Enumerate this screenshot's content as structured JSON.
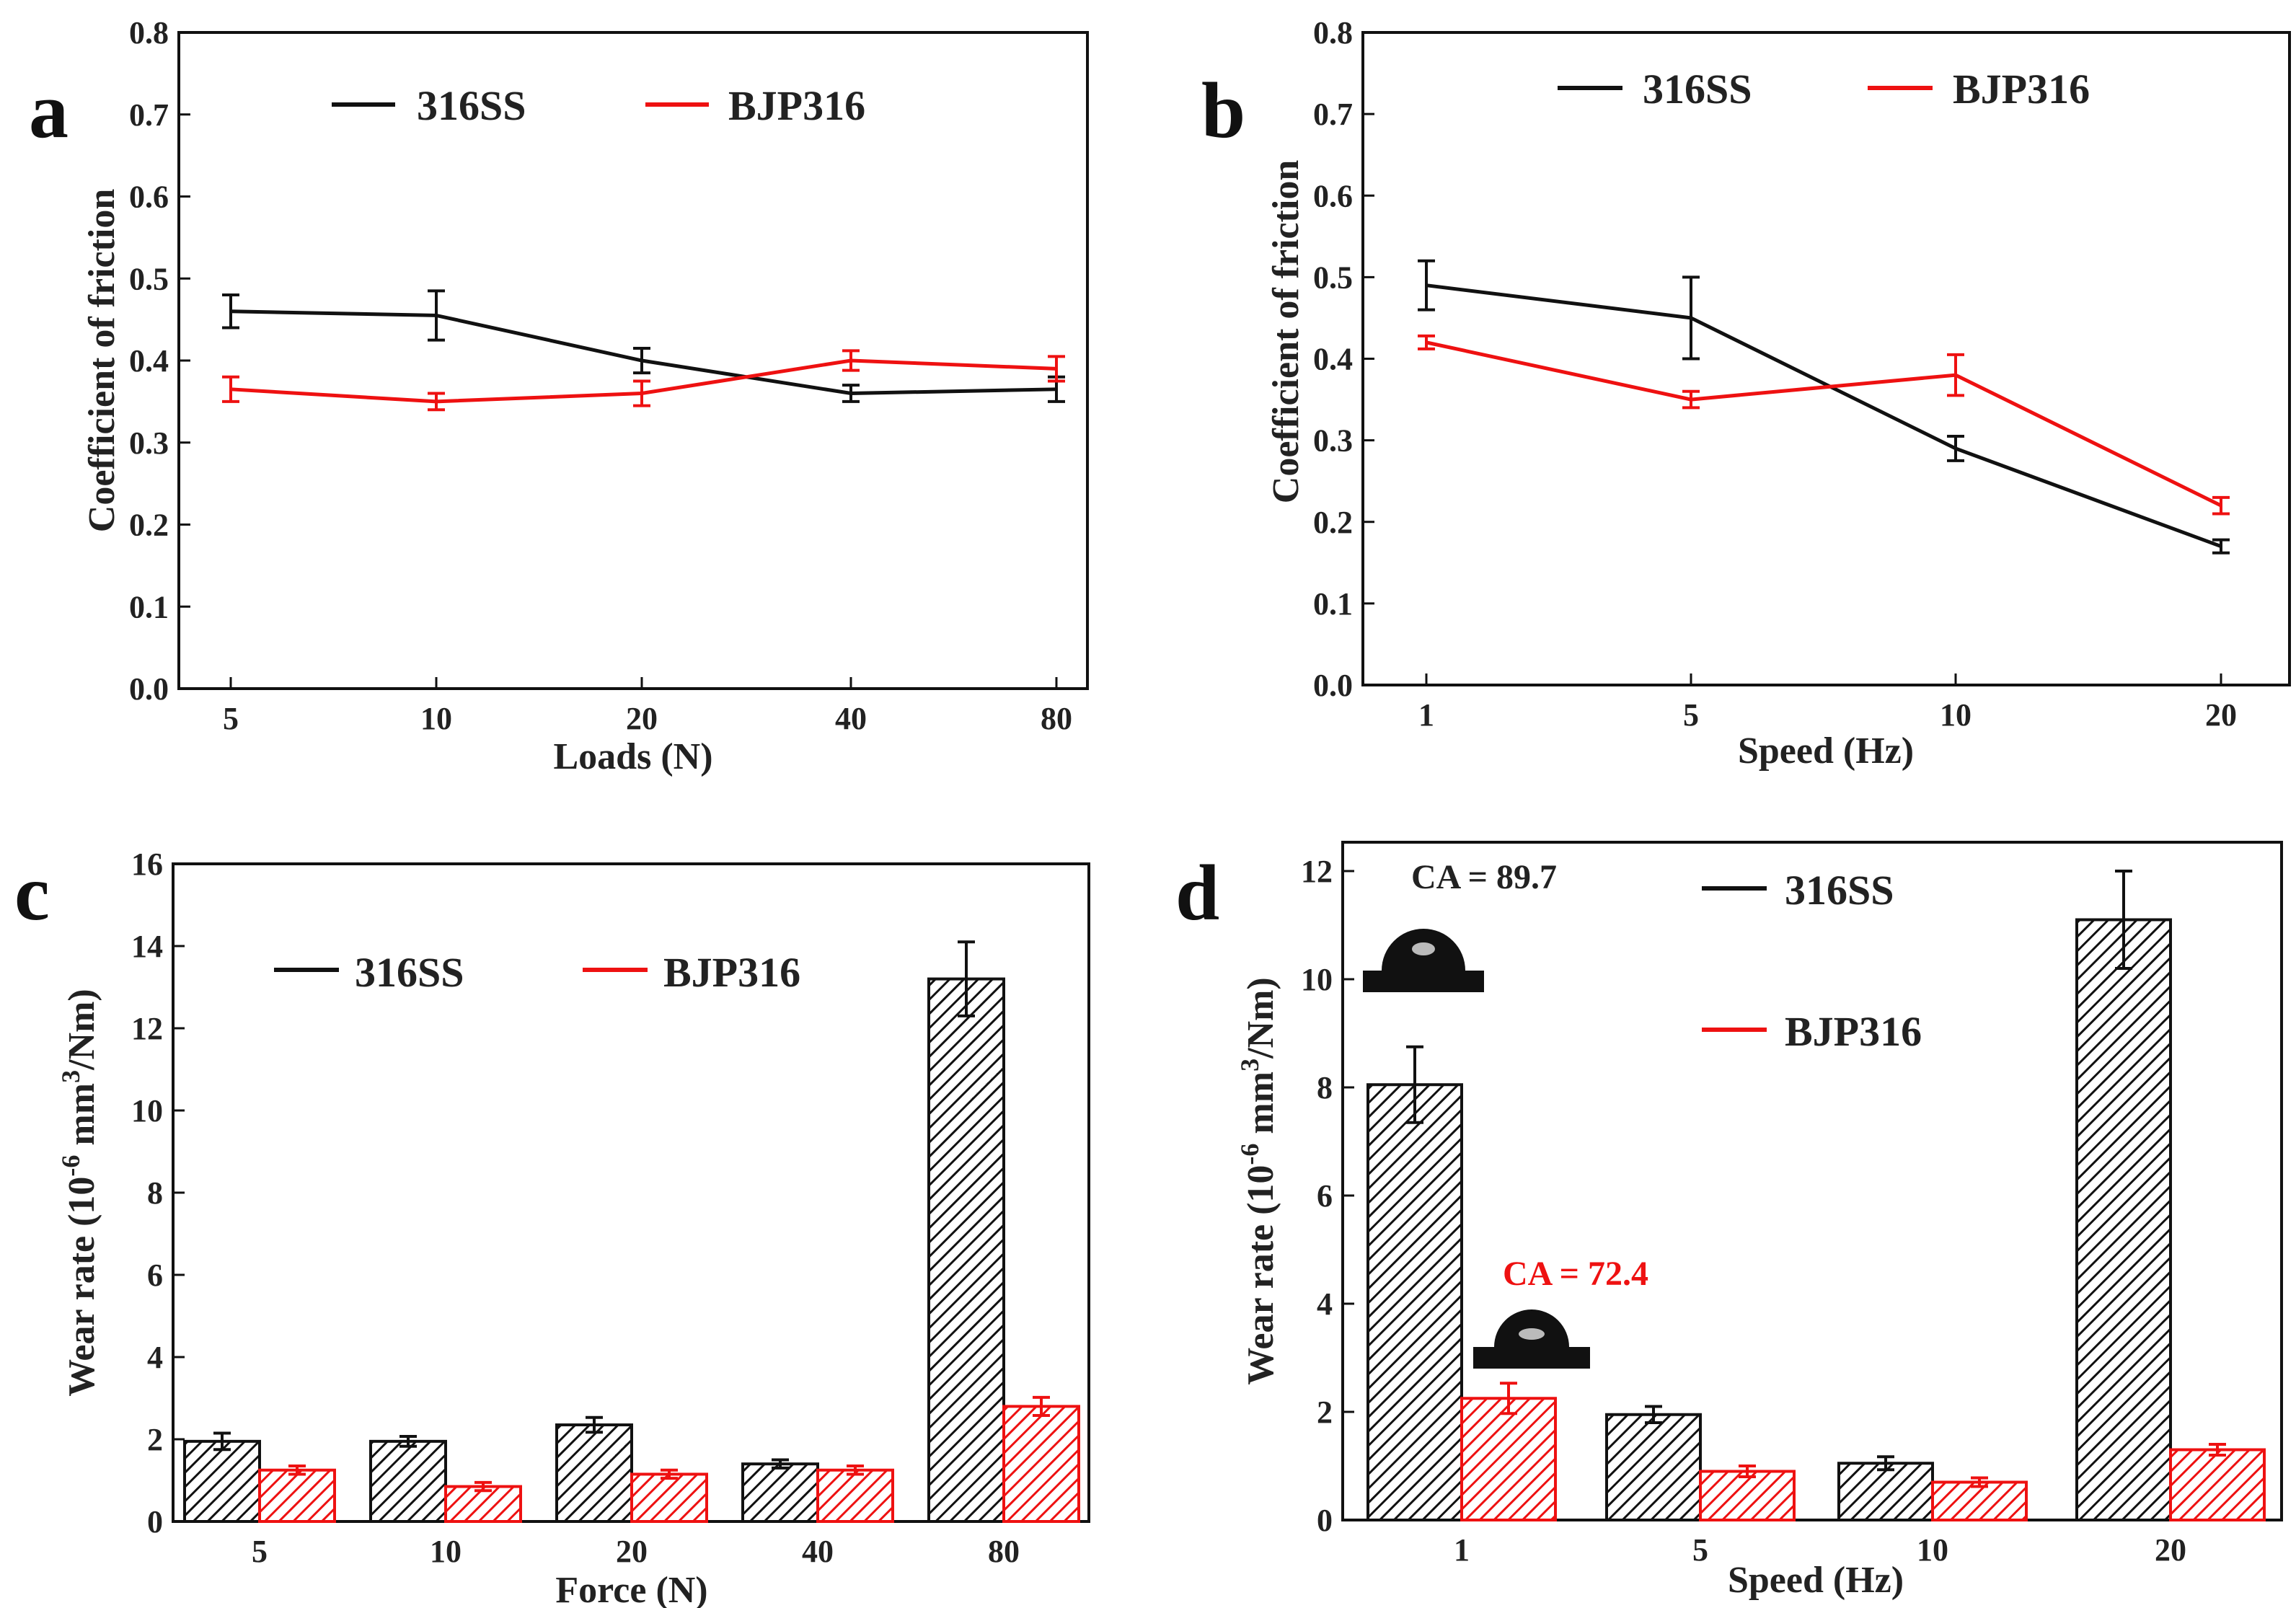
{
  "figure": {
    "panels": [
      "a",
      "b",
      "c",
      "d"
    ],
    "legend": {
      "series1": "316SS",
      "series2": "BJP316"
    },
    "colors": {
      "series1": "#111111",
      "series2": "#ee1111",
      "axis": "#111111"
    }
  },
  "chart_data": [
    {
      "panel": "a",
      "type": "line",
      "xlabel": "Loads (N)",
      "ylabel": "Coefficient of friction",
      "categories": [
        "5",
        "10",
        "20",
        "40",
        "80"
      ],
      "ylim": [
        0.0,
        0.8
      ],
      "yticks": [
        "0.0",
        "0.1",
        "0.2",
        "0.3",
        "0.4",
        "0.5",
        "0.6",
        "0.7",
        "0.8"
      ],
      "legend_position": "top",
      "series": [
        {
          "name": "316SS",
          "color": "#111111",
          "values": [
            0.46,
            0.455,
            0.4,
            0.36,
            0.365
          ],
          "errors": [
            0.02,
            0.03,
            0.015,
            0.01,
            0.015
          ]
        },
        {
          "name": "BJP316",
          "color": "#ee1111",
          "values": [
            0.365,
            0.35,
            0.36,
            0.4,
            0.39
          ],
          "errors": [
            0.015,
            0.01,
            0.015,
            0.012,
            0.015
          ]
        }
      ]
    },
    {
      "panel": "b",
      "type": "line",
      "xlabel": "Speed (Hz)",
      "ylabel": "Coefficient of friction",
      "categories": [
        "1",
        "5",
        "10",
        "20"
      ],
      "ylim": [
        0.0,
        0.8
      ],
      "yticks": [
        "0.0",
        "0.1",
        "0.2",
        "0.3",
        "0.4",
        "0.5",
        "0.6",
        "0.7",
        "0.8"
      ],
      "legend_position": "top",
      "series": [
        {
          "name": "316SS",
          "color": "#111111",
          "values": [
            0.49,
            0.45,
            0.29,
            0.17
          ],
          "errors": [
            0.03,
            0.05,
            0.015,
            0.008
          ]
        },
        {
          "name": "BJP316",
          "color": "#ee1111",
          "values": [
            0.42,
            0.35,
            0.38,
            0.22
          ],
          "errors": [
            0.008,
            0.01,
            0.025,
            0.01
          ]
        }
      ]
    },
    {
      "panel": "c",
      "type": "bar",
      "xlabel": "Force (N)",
      "ylabel_main": "Wear rate (10",
      "ylabel_exp1": "-6",
      "ylabel_mid": " mm",
      "ylabel_exp2": "3",
      "ylabel_end": "/Nm)",
      "categories": [
        "5",
        "10",
        "20",
        "40",
        "80"
      ],
      "ylim": [
        0,
        16
      ],
      "yticks": [
        "0",
        "2",
        "4",
        "6",
        "8",
        "10",
        "12",
        "14",
        "16"
      ],
      "legend_position": "upper-middle",
      "series": [
        {
          "name": "316SS",
          "color": "#111111",
          "values": [
            1.95,
            1.95,
            2.35,
            1.4,
            13.2
          ],
          "errors": [
            0.2,
            0.12,
            0.18,
            0.1,
            0.9
          ]
        },
        {
          "name": "BJP316",
          "color": "#ee1111",
          "values": [
            1.25,
            0.85,
            1.15,
            1.25,
            2.8
          ],
          "errors": [
            0.1,
            0.1,
            0.1,
            0.1,
            0.22
          ]
        }
      ]
    },
    {
      "panel": "d",
      "type": "bar",
      "xlabel": "Speed (Hz)",
      "ylabel_main": "Wear rate (10",
      "ylabel_exp1": "-6",
      "ylabel_mid": " mm",
      "ylabel_exp2": "3",
      "ylabel_end": "/Nm)",
      "categories": [
        "1",
        "5",
        "10",
        "20"
      ],
      "ylim": [
        0,
        13
      ],
      "yticks": [
        "0",
        "2",
        "4",
        "6",
        "8",
        "10",
        "12"
      ],
      "legend_position": "upper-middle",
      "annotations": {
        "ca1": "CA = 89.7",
        "ca2": "CA = 72.4"
      },
      "series": [
        {
          "name": "316SS",
          "color": "#111111",
          "values": [
            8.05,
            1.95,
            1.05,
            11.1
          ],
          "errors": [
            0.7,
            0.15,
            0.12,
            0.9
          ]
        },
        {
          "name": "BJP316",
          "color": "#ee1111",
          "values": [
            2.25,
            0.9,
            0.7,
            1.3
          ],
          "errors": [
            0.28,
            0.1,
            0.08,
            0.1
          ]
        }
      ]
    }
  ]
}
